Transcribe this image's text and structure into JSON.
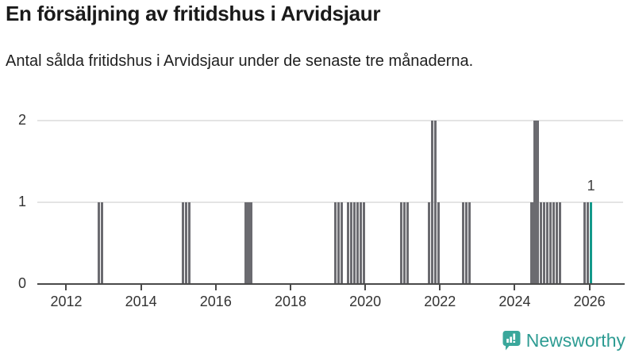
{
  "header": {
    "title": "En försäljning av fritidshus i Arvidsjaur",
    "subtitle": "Antal sålda fritidshus i Arvidsjaur under de senaste tre månaderna."
  },
  "chart_data": {
    "type": "bar",
    "title": "En försäljning av fritidshus i Arvidsjaur",
    "subtitle": "Antal sålda fritidshus i Arvidsjaur under de senaste tre månaderna.",
    "x_axis": {
      "range": [
        2011.225,
        2026.9
      ],
      "ticks": [
        2012,
        2014,
        2016,
        2018,
        2020,
        2022,
        2024,
        2026
      ]
    },
    "y_axis": {
      "range": [
        0,
        2
      ],
      "ticks": [
        0,
        1,
        2
      ]
    },
    "grid": true,
    "legend": false,
    "bar_color": "#6b6b70",
    "highlight_color": "#14998b",
    "axis_color": "#4a4a4a",
    "grid_color": "#e4e4e4",
    "label_color": "#333333",
    "highlight_month": "2026-01",
    "annotation": {
      "text": "1",
      "month": "2026-01"
    },
    "points": [
      {
        "m": "2012-11",
        "v": 1
      },
      {
        "m": "2012-12",
        "v": 1
      },
      {
        "m": "2015-02",
        "v": 1
      },
      {
        "m": "2015-03",
        "v": 1
      },
      {
        "m": "2015-04",
        "v": 1
      },
      {
        "m": "2016-10",
        "v": 1
      },
      {
        "m": "2016-11",
        "v": 1
      },
      {
        "m": "2016-12",
        "v": 1
      },
      {
        "m": "2019-03",
        "v": 1
      },
      {
        "m": "2019-04",
        "v": 1
      },
      {
        "m": "2019-05",
        "v": 1
      },
      {
        "m": "2019-07",
        "v": 1
      },
      {
        "m": "2019-08",
        "v": 1
      },
      {
        "m": "2019-09",
        "v": 1
      },
      {
        "m": "2019-10",
        "v": 1
      },
      {
        "m": "2019-11",
        "v": 1
      },
      {
        "m": "2019-12",
        "v": 1
      },
      {
        "m": "2020-12",
        "v": 1
      },
      {
        "m": "2021-01",
        "v": 1
      },
      {
        "m": "2021-02",
        "v": 1
      },
      {
        "m": "2021-09",
        "v": 1
      },
      {
        "m": "2021-10",
        "v": 2
      },
      {
        "m": "2021-11",
        "v": 2
      },
      {
        "m": "2021-12",
        "v": 1
      },
      {
        "m": "2022-08",
        "v": 1
      },
      {
        "m": "2022-09",
        "v": 1
      },
      {
        "m": "2022-10",
        "v": 1
      },
      {
        "m": "2024-06",
        "v": 1
      },
      {
        "m": "2024-07",
        "v": 2
      },
      {
        "m": "2024-08",
        "v": 2
      },
      {
        "m": "2024-09",
        "v": 1
      },
      {
        "m": "2024-10",
        "v": 1
      },
      {
        "m": "2024-11",
        "v": 1
      },
      {
        "m": "2024-12",
        "v": 1
      },
      {
        "m": "2025-01",
        "v": 1
      },
      {
        "m": "2025-02",
        "v": 1
      },
      {
        "m": "2025-03",
        "v": 1
      },
      {
        "m": "2025-11",
        "v": 1
      },
      {
        "m": "2025-12",
        "v": 1
      },
      {
        "m": "2026-01",
        "v": 1
      }
    ]
  },
  "footer": {
    "brand": "Newsworthy",
    "brand_color": "#2e9c93",
    "icon": "newsworthy-speech-bubble-bar-chart-icon"
  }
}
